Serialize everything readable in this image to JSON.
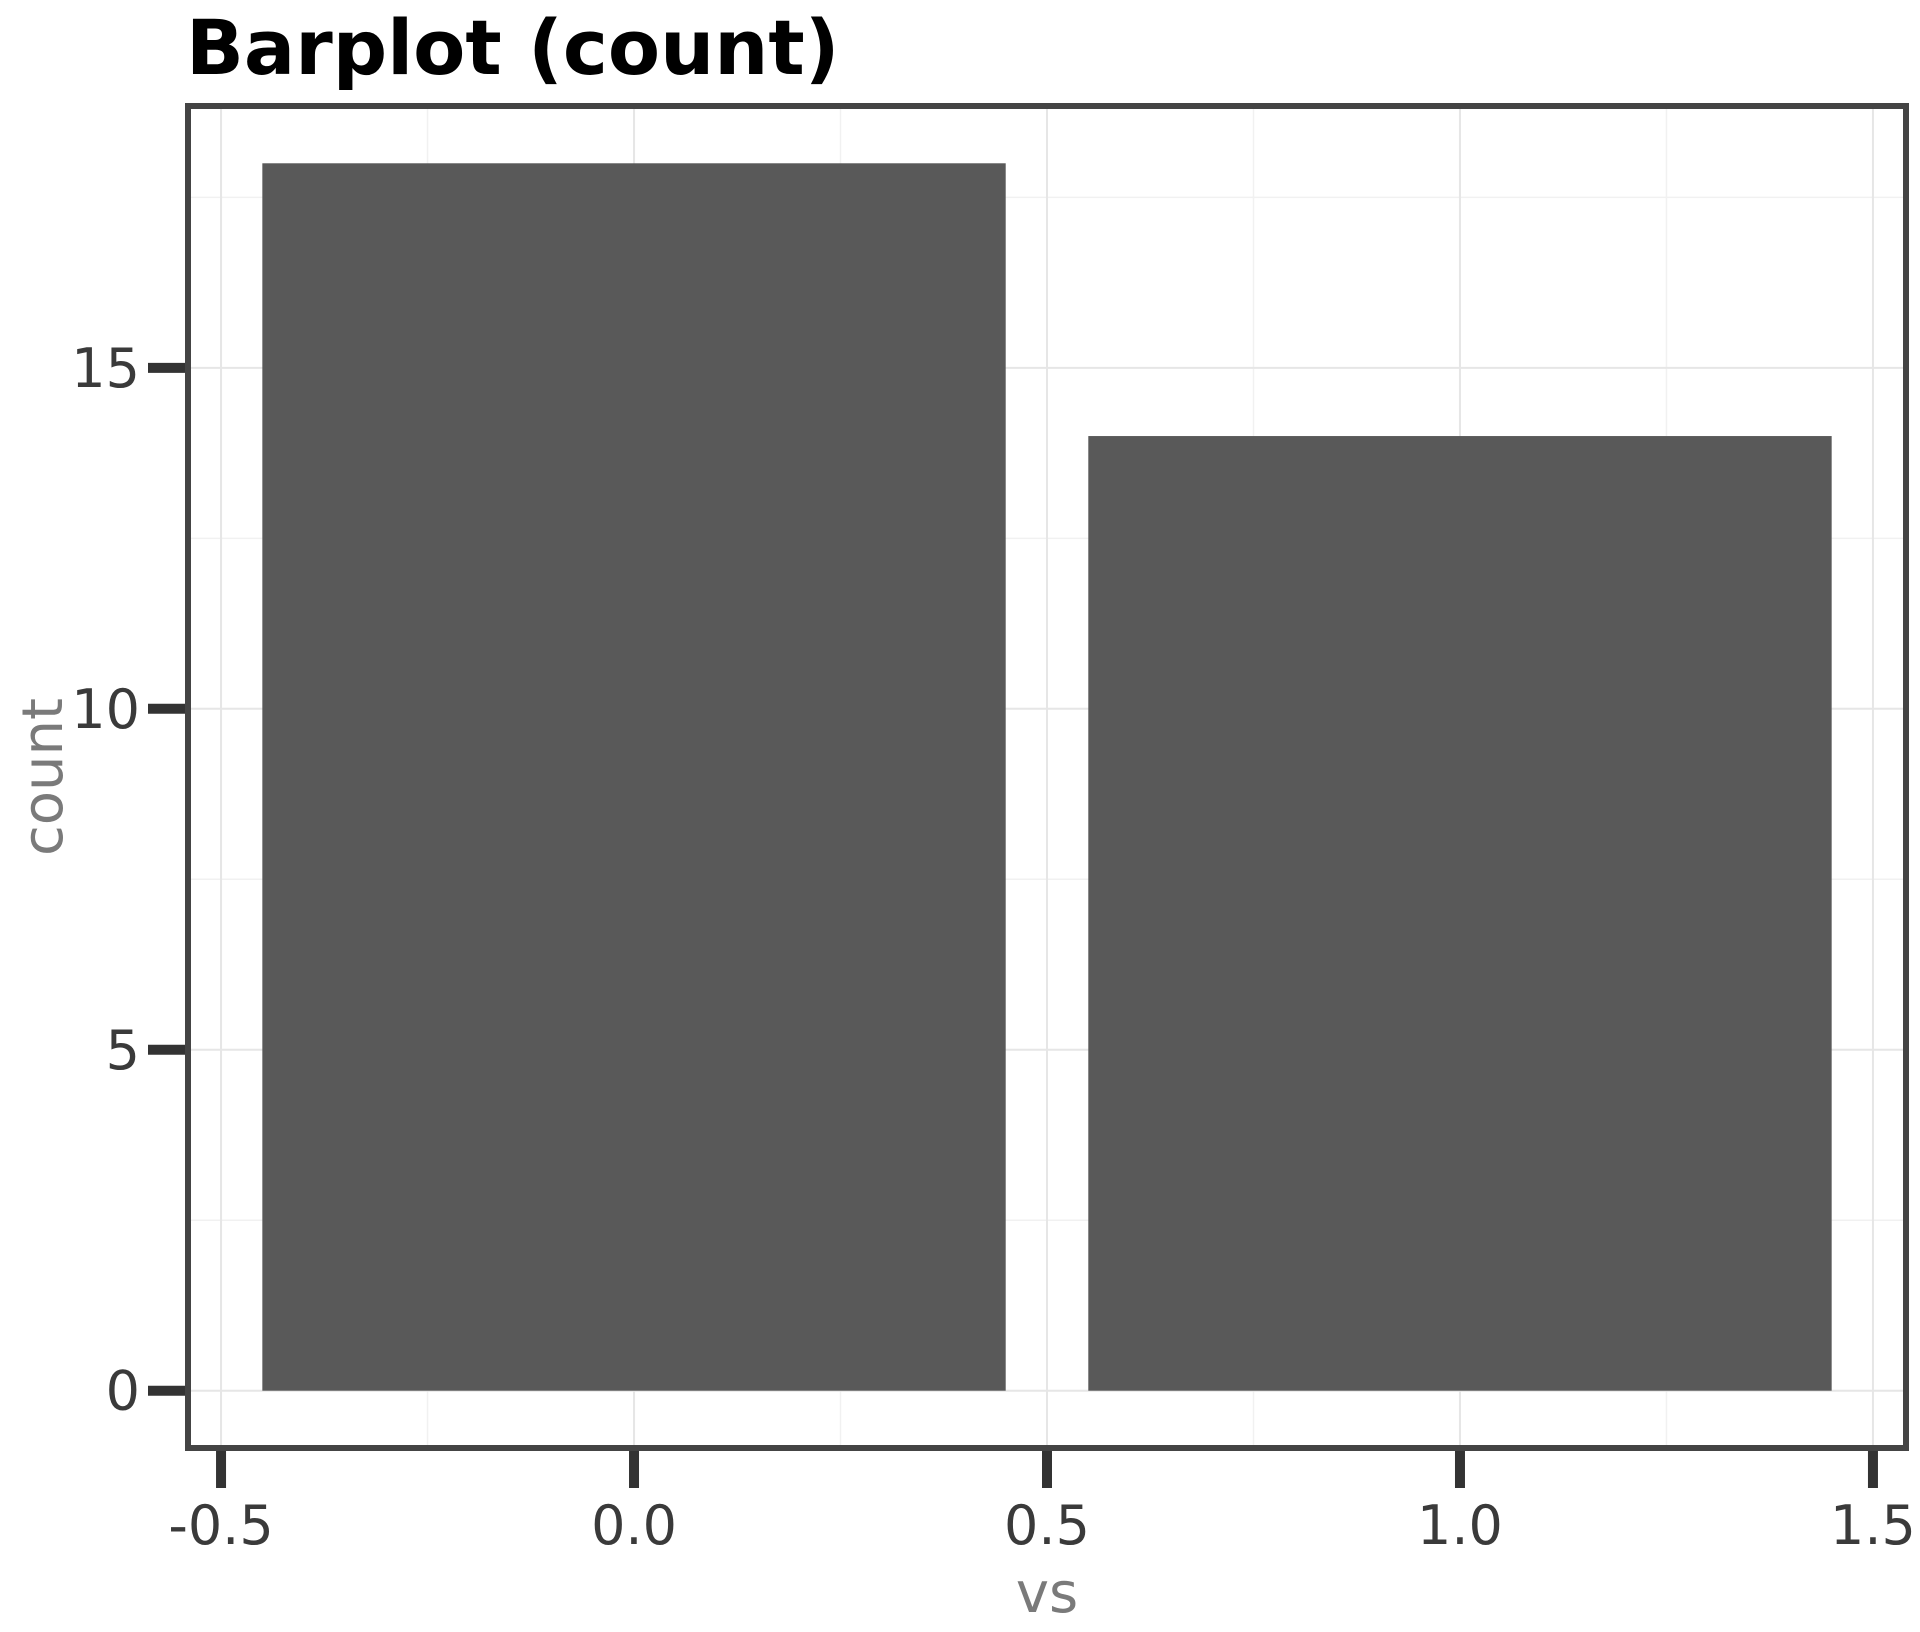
{
  "chart_data": {
    "type": "bar",
    "title": "Barplot (count)",
    "xlabel": "vs",
    "ylabel": "count",
    "x": [
      0,
      1
    ],
    "values": [
      18,
      14
    ],
    "bar_width": 0.9,
    "xlim": [
      -0.54,
      1.54
    ],
    "ylim": [
      -0.84,
      18.84
    ],
    "x_ticks": [
      -0.5,
      0.0,
      0.5,
      1.0,
      1.5
    ],
    "x_tick_labels": [
      "-0.5",
      "0.0",
      "0.5",
      "1.0",
      "1.5"
    ],
    "y_ticks": [
      0,
      5,
      10,
      15
    ],
    "y_tick_labels": [
      "0",
      "5",
      "10",
      "15"
    ],
    "grid": true,
    "legend": "none",
    "colors": {
      "bar": "#595959",
      "panel_border": "#444444",
      "grid_major": "#e6e6e6",
      "grid_minor": "#f1f1f1",
      "tick_mark": "#333333"
    }
  }
}
